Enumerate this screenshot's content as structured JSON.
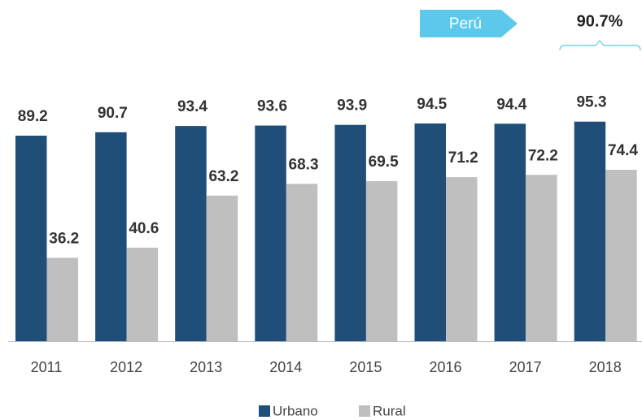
{
  "chart_data": {
    "type": "bar",
    "categories": [
      "2011",
      "2012",
      "2013",
      "2014",
      "2015",
      "2016",
      "2017",
      "2018"
    ],
    "series": [
      {
        "name": "Urbano",
        "color": "#1f4e79",
        "values": [
          89.2,
          90.7,
          93.4,
          93.6,
          93.9,
          94.5,
          94.4,
          95.3
        ]
      },
      {
        "name": "Rural",
        "color": "#bfbfbf",
        "values": [
          36.2,
          40.6,
          63.2,
          68.3,
          69.5,
          71.2,
          72.2,
          74.4
        ]
      }
    ],
    "ylim": [
      0,
      100
    ],
    "annotation": {
      "label": "Perú",
      "text": "90.7%"
    }
  }
}
